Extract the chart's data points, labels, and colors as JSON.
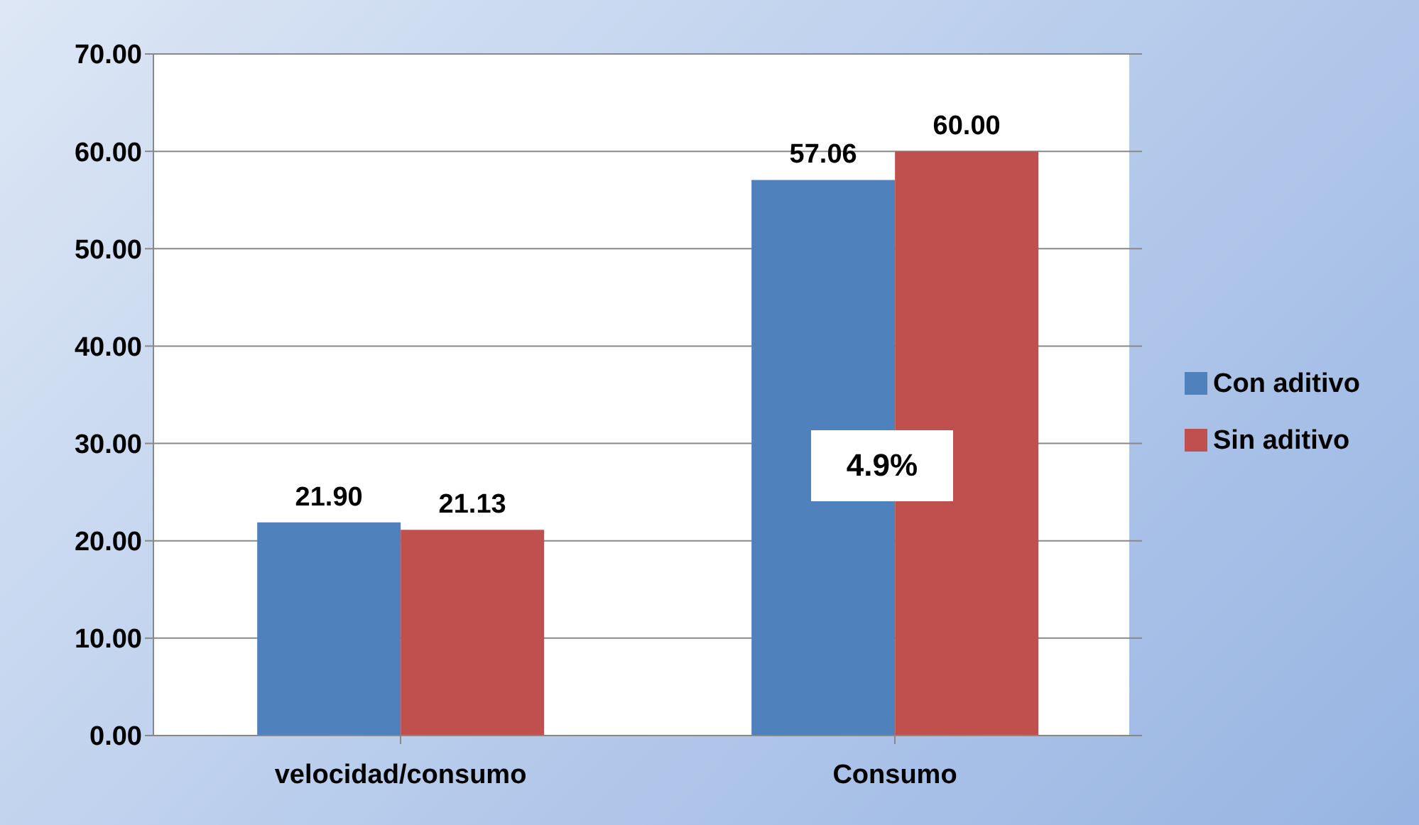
{
  "chart_data": {
    "type": "bar",
    "categories": [
      "velocidad/consumo",
      "Consumo"
    ],
    "series": [
      {
        "name": "Con aditivo",
        "color": "#4f81bd",
        "values": [
          21.9,
          57.06
        ],
        "value_labels": [
          "21.90",
          "57.06"
        ]
      },
      {
        "name": "Sin aditivo",
        "color": "#c0504d",
        "values": [
          21.13,
          60.0
        ],
        "value_labels": [
          "21.13",
          "60.00"
        ]
      }
    ],
    "ylim": [
      0,
      70
    ],
    "yticks": [
      {
        "value": 0,
        "label": "0.00"
      },
      {
        "value": 10,
        "label": "10.00"
      },
      {
        "value": 20,
        "label": "20.00"
      },
      {
        "value": 30,
        "label": "30.00"
      },
      {
        "value": 40,
        "label": "40.00"
      },
      {
        "value": 50,
        "label": "50.00"
      },
      {
        "value": 60,
        "label": "60.00"
      },
      {
        "value": 70,
        "label": "70.00"
      }
    ],
    "grid": "y",
    "legend": "right",
    "annotations": [
      "4.9%"
    ]
  }
}
